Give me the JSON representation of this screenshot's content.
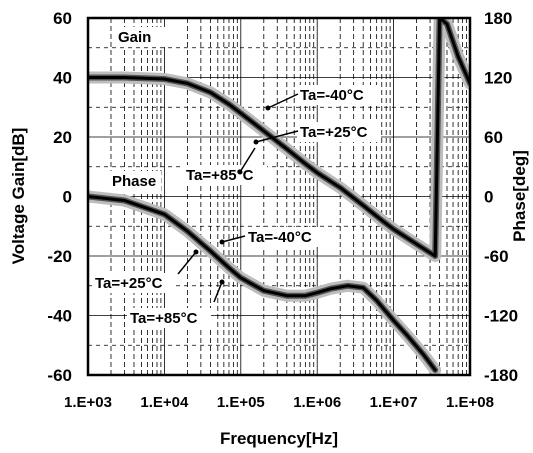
{
  "chart_data": {
    "type": "line",
    "title": "",
    "xlabel": "Frequency[Hz]",
    "ylabel_left": "Voltage Gain[dB]",
    "ylabel_right": "Phase[deg]",
    "x_scale": "log",
    "xlim": [
      1000,
      100000000
    ],
    "ylim_left": [
      -60,
      60
    ],
    "ylim_right": [
      -180,
      180
    ],
    "x_ticks": [
      "1.E+03",
      "1.E+04",
      "1.E+05",
      "1.E+06",
      "1.E+07",
      "1.E+08"
    ],
    "y_ticks_left": [
      "60",
      "40",
      "20",
      "0",
      "-20",
      "-40",
      "-60"
    ],
    "y_ticks_right": [
      "180",
      "120",
      "60",
      "0",
      "-60",
      "-120",
      "-180"
    ],
    "grid": true,
    "series": [
      {
        "name": "Gain",
        "axis": "left",
        "x": [
          1000,
          3000,
          10000,
          20000,
          40000,
          70000,
          100000,
          200000,
          400000,
          700000,
          1000000,
          2000000,
          4000000,
          7000000,
          10000000,
          20000000,
          35000000,
          40000000,
          50000000,
          70000000,
          100000000
        ],
        "y": [
          40,
          40,
          39.5,
          38,
          35,
          31,
          28,
          22,
          16,
          11,
          8,
          3,
          -3,
          -8,
          -11,
          -16,
          -20,
          60,
          58,
          47,
          38
        ]
      },
      {
        "name": "Phase",
        "axis": "right",
        "x": [
          1000,
          3000,
          10000,
          20000,
          40000,
          70000,
          100000,
          200000,
          400000,
          700000,
          1000000,
          1500000,
          2500000,
          4000000,
          6000000,
          10000000,
          15000000,
          25000000,
          35000000
        ],
        "y": [
          0,
          -4,
          -18,
          -35,
          -55,
          -72,
          -82,
          -95,
          -100,
          -100,
          -97,
          -93,
          -90,
          -92,
          -105,
          -125,
          -140,
          -160,
          -175
        ]
      }
    ],
    "annotations": [
      {
        "text": "Gain"
      },
      {
        "text": "Phase"
      },
      {
        "text": "Ta=-40°C"
      },
      {
        "text": "Ta=+25°C"
      },
      {
        "text": "Ta=+85°C"
      },
      {
        "text": "Ta=-40°C"
      },
      {
        "text": "Ta=+25°C"
      },
      {
        "text": "Ta=+85°C"
      }
    ]
  }
}
